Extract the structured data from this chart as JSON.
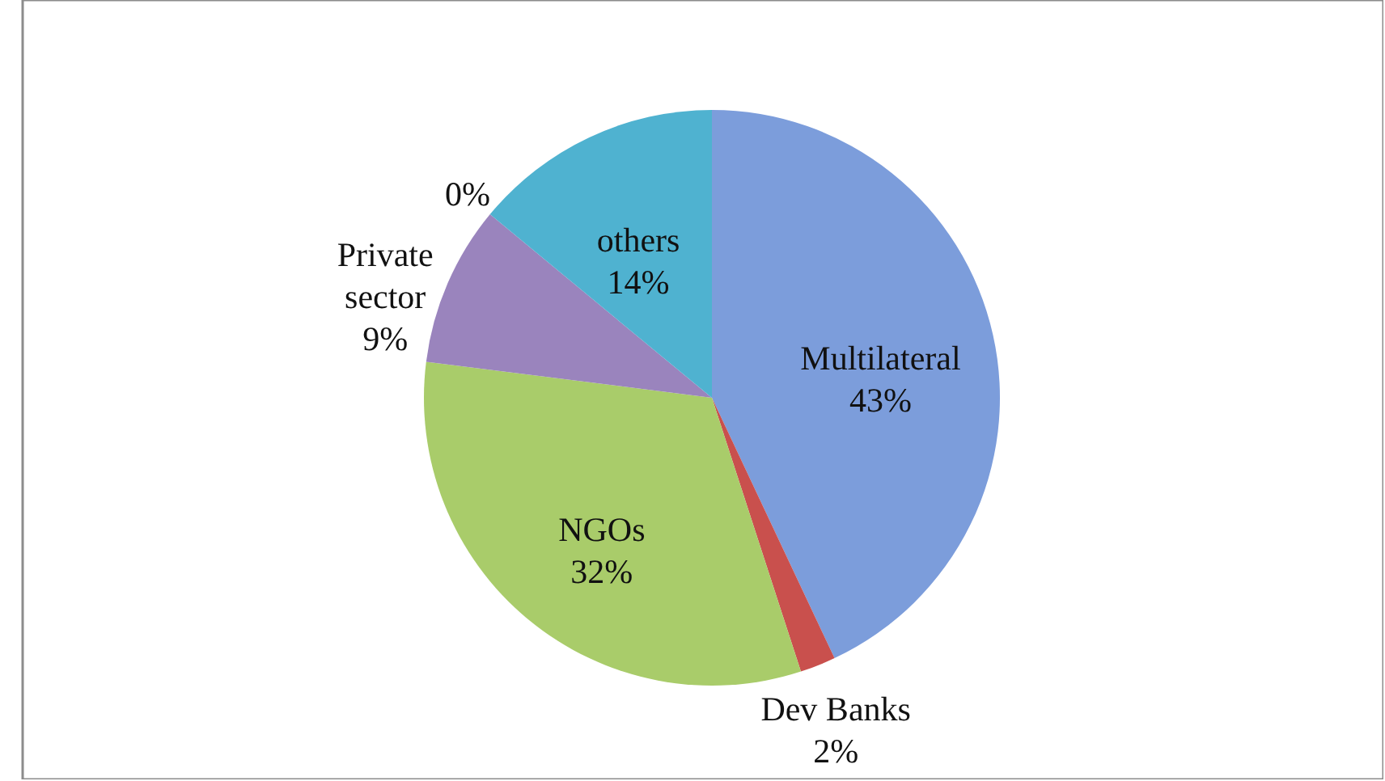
{
  "chart_data": {
    "type": "pie",
    "categories": [
      "Multilateral",
      "Dev Banks",
      "NGOs",
      "Private sector",
      null,
      "others"
    ],
    "values": [
      43,
      2,
      32,
      9,
      0,
      14
    ],
    "value_labels": [
      "43%",
      "2%",
      "32%",
      "9%",
      "0%",
      "14%"
    ],
    "colors": [
      "#7c9ddb",
      "#c9504d",
      "#a9cc6a",
      "#9a84bd",
      "#f79646",
      "#4fb2d0"
    ]
  }
}
